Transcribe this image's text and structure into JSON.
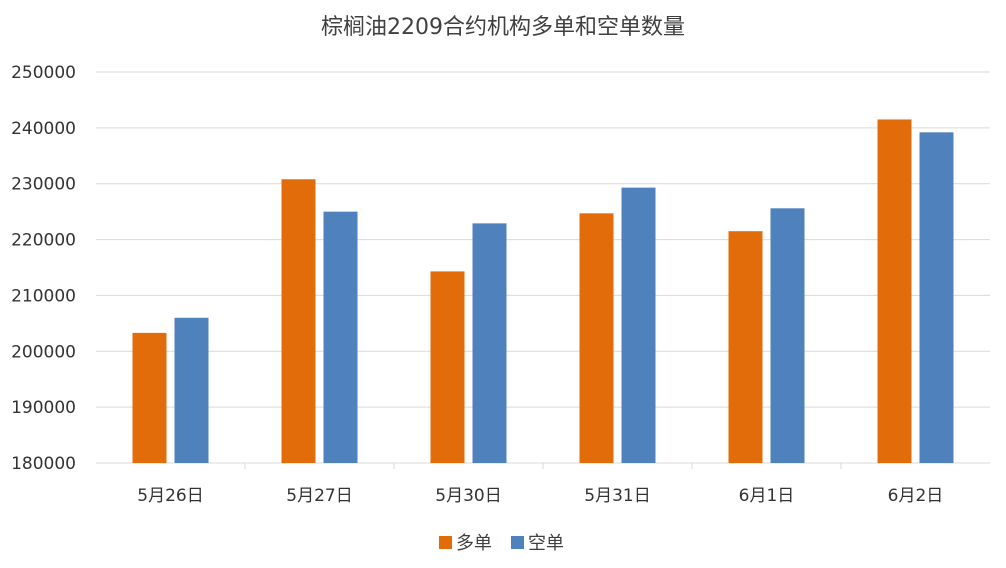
{
  "chart_data": {
    "type": "bar",
    "title": "棕榈油2209合约机构多单和空单数量",
    "categories": [
      "5月26日",
      "5月27日",
      "5月30日",
      "5月31日",
      "6月1日",
      "6月2日"
    ],
    "series": [
      {
        "name": "多单",
        "color": "#E36C0A",
        "values": [
          203300,
          230800,
          214300,
          224700,
          221500,
          241500
        ]
      },
      {
        "name": "空单",
        "color": "#4F81BD",
        "values": [
          206000,
          225000,
          222900,
          229300,
          225600,
          239200
        ]
      }
    ],
    "ylim": [
      180000,
      250000
    ],
    "yticks": [
      250000,
      240000,
      230000,
      220000,
      210000,
      200000,
      190000,
      180000
    ],
    "grid": true,
    "legend": "bottom",
    "gridColor": "#D9D9D9",
    "axisColor": "#D9D9D9"
  }
}
